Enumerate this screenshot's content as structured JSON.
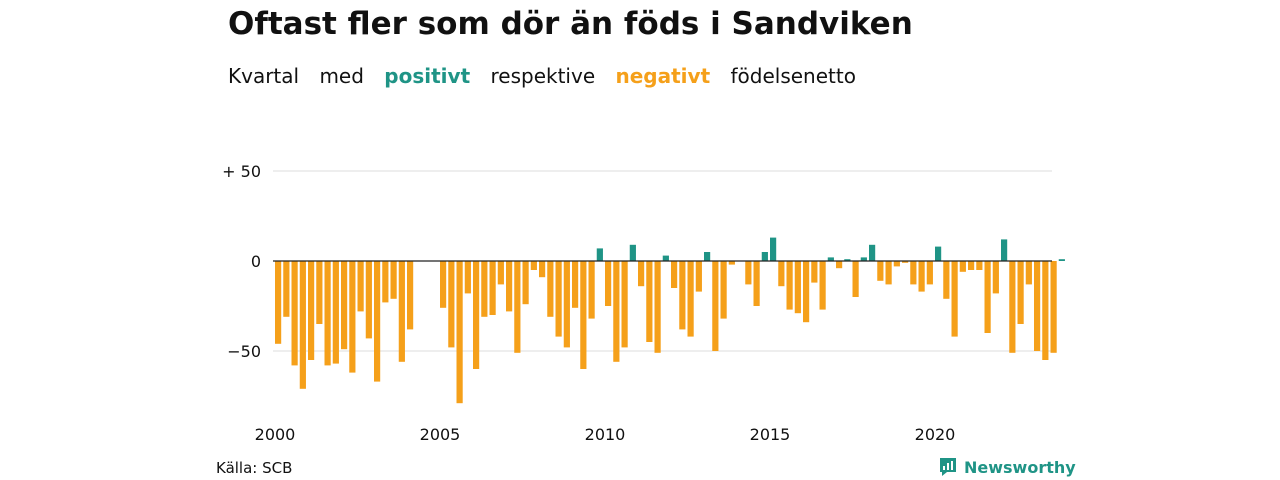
{
  "header": {
    "title": "Oftast fler som dör än föds i Sandviken",
    "subtitle": {
      "w1": "Kvartal",
      "w2": "med",
      "w3": "positivt",
      "w4": "respektive",
      "w5": "negativt",
      "w6": "födelsenetto"
    }
  },
  "footer": {
    "source": "Källa: SCB",
    "brand": "Newsworthy"
  },
  "colors": {
    "positive": "#1f9486",
    "negative": "#f5a01a",
    "grid": "#dddddd",
    "zero": "#222222"
  },
  "chart_data": {
    "type": "bar",
    "title": "Oftast fler som dör än föds i Sandviken",
    "subtitle": "Kvartal med positivt respektive negativt födelsenetto",
    "xlabel": "",
    "ylabel": "",
    "ylim": [
      -80,
      50
    ],
    "yticks": [
      {
        "value": 50,
        "label": "+ 50"
      },
      {
        "value": 0,
        "label": "0"
      },
      {
        "value": -50,
        "label": "−50"
      }
    ],
    "xticks": [
      {
        "value": 2000,
        "label": "2000"
      },
      {
        "value": 2005,
        "label": "2005"
      },
      {
        "value": 2010,
        "label": "2010"
      },
      {
        "value": 2015,
        "label": "2015"
      },
      {
        "value": 2020,
        "label": "2020"
      }
    ],
    "x_start": "2000Q1",
    "grid": true,
    "values": [
      -46,
      -31,
      -58,
      -71,
      -55,
      -35,
      -58,
      -57,
      -49,
      -62,
      -28,
      -43,
      -67,
      -23,
      -21,
      -56,
      -38,
      0,
      0,
      0,
      -26,
      -48,
      -79,
      -18,
      -60,
      -31,
      -30,
      -13,
      -28,
      -51,
      -24,
      -5,
      -9,
      -31,
      -42,
      -48,
      -26,
      -60,
      -32,
      7,
      -25,
      -56,
      -48,
      9,
      -14,
      -45,
      -51,
      3,
      -15,
      -38,
      -42,
      -17,
      5,
      -50,
      -32,
      -2,
      0,
      -13,
      -25,
      5,
      13,
      -14,
      -27,
      -29,
      -34,
      -12,
      -27,
      2,
      -4,
      1,
      -20,
      2,
      9,
      -11,
      -13,
      -3,
      -1,
      -13,
      -17,
      -13,
      8,
      -21,
      -42,
      -6,
      -5,
      -5,
      -40,
      -18,
      12,
      -51,
      -35,
      -13,
      -50,
      -55,
      -51,
      1
    ]
  }
}
